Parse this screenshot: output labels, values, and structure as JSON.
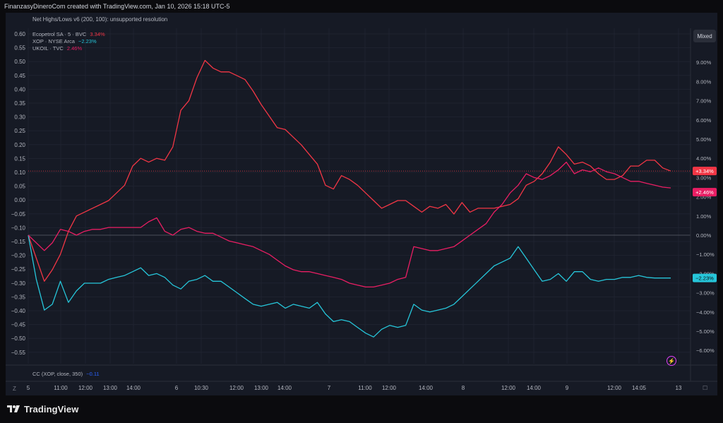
{
  "header": {
    "attribution": "FinanzasyDineroCom created with TradingView.com, Jan 10, 2026 15:18 UTC-5"
  },
  "indicator": {
    "label": "Net Highs/Lows v6 (200, 100): unsupported resolution"
  },
  "legend": [
    {
      "name": "Ecopetrol SA · 5 · BVC",
      "value": "3.34%",
      "color": "#f23645"
    },
    {
      "name": "XOP · NYSE Arca",
      "value": "−2.23%",
      "color": "#26c6da"
    },
    {
      "name": "UKOIL · TVC",
      "value": "2.46%",
      "color": "#e91e63"
    }
  ],
  "scale_button": "Mixed",
  "bottom_pane": {
    "label": "CC (XOP, close, 350)",
    "value": "−0.11",
    "value_color": "#2962ff"
  },
  "brand": "TradingView",
  "icons": [
    "tradingview-logo-icon",
    "lightning-icon"
  ],
  "chart_data": {
    "type": "line",
    "left_axis": {
      "ticks": [
        "0.60",
        "0.55",
        "0.50",
        "0.45",
        "0.40",
        "0.35",
        "0.30",
        "0.25",
        "0.20",
        "0.15",
        "0.10",
        "0.05",
        "0.00",
        "−0.05",
        "−0.10",
        "−0.15",
        "−0.20",
        "−0.25",
        "−0.30",
        "−0.35",
        "−0.40",
        "−0.45",
        "−0.50",
        "−0.55"
      ],
      "range": [
        -0.55,
        0.6
      ]
    },
    "right_axis": {
      "ticks": [
        "9.00%",
        "8.00%",
        "7.00%",
        "6.00%",
        "5.00%",
        "4.00%",
        "3.00%",
        "2.00%",
        "1.00%",
        "0.00%",
        "−1.00%",
        "−2.00%",
        "−3.00%",
        "−4.00%",
        "−5.00%",
        "−6.00%"
      ],
      "range": [
        -6.5,
        10.0
      ],
      "unit": "%"
    },
    "x_ticks": [
      "5",
      "11:00",
      "12:00",
      "13:00",
      "14:00",
      "6",
      "10:30",
      "12:00",
      "13:00",
      "14:00",
      "7",
      "11:00",
      "12:00",
      "14:00",
      "8",
      "12:00",
      "14:00",
      "9",
      "12:00",
      "14:05",
      "13"
    ],
    "x_nav": {
      "left": "Z",
      "right": "☐"
    },
    "reference_lines": {
      "zero_pct": 0,
      "last_price_pct": 3.34
    },
    "series": [
      {
        "name": "Ecopetrol SA · 5 · BVC",
        "color": "#f23645",
        "last_label": "+3.34%",
        "values": [
          0,
          -1.2,
          -2.4,
          -1.8,
          -1,
          0.2,
          1,
          1.2,
          1.4,
          1.6,
          1.8,
          2.2,
          2.6,
          3.6,
          4,
          3.8,
          4,
          3.9,
          4.6,
          6.5,
          7,
          8.2,
          9.1,
          8.7,
          8.5,
          8.5,
          8.3,
          8.1,
          7.5,
          6.8,
          6.2,
          5.6,
          5.5,
          5.1,
          4.7,
          4.2,
          3.7,
          2.6,
          2.4,
          3.1,
          2.9,
          2.6,
          2.2,
          1.8,
          1.4,
          1.6,
          1.8,
          1.8,
          1.5,
          1.2,
          1.5,
          1.4,
          1.6,
          1.1,
          1.7,
          1.2,
          1.4,
          1.4,
          1.4,
          1.5,
          1.6,
          1.9,
          2.6,
          2.8,
          3.2,
          3.8,
          4.6,
          4.2,
          3.7,
          3.8,
          3.6,
          3.2,
          2.9,
          2.9,
          3.1,
          3.6,
          3.6,
          3.9,
          3.9,
          3.5,
          3.34
        ]
      },
      {
        "name": "XOP · NYSE Arca",
        "color": "#26c6da",
        "last_label": "−2.23%",
        "values": [
          0,
          -2.3,
          -3.9,
          -3.6,
          -2.4,
          -3.5,
          -2.9,
          -2.5,
          -2.5,
          -2.5,
          -2.3,
          -2.2,
          -2.1,
          -1.9,
          -1.7,
          -2.1,
          -2,
          -2.2,
          -2.6,
          -2.8,
          -2.4,
          -2.3,
          -2.1,
          -2.4,
          -2.4,
          -2.7,
          -3,
          -3.3,
          -3.6,
          -3.7,
          -3.6,
          -3.5,
          -3.8,
          -3.6,
          -3.7,
          -3.8,
          -3.5,
          -4.1,
          -4.5,
          -4.4,
          -4.5,
          -4.8,
          -5.1,
          -5.3,
          -4.9,
          -4.7,
          -4.8,
          -4.7,
          -3.6,
          -3.9,
          -4,
          -3.9,
          -3.8,
          -3.6,
          -3.2,
          -2.8,
          -2.4,
          -2,
          -1.6,
          -1.4,
          -1.2,
          -0.6,
          -1.2,
          -1.8,
          -2.4,
          -2.3,
          -2,
          -2.4,
          -1.9,
          -1.9,
          -2.3,
          -2.4,
          -2.3,
          -2.3,
          -2.2,
          -2.2,
          -2.1,
          -2.2,
          -2.23,
          -2.23,
          -2.23
        ]
      },
      {
        "name": "UKOIL · TVC",
        "color": "#e91e63",
        "last_label": "+2.46%",
        "values": [
          0,
          -0.4,
          -0.8,
          -0.4,
          0.3,
          0.2,
          0,
          0.2,
          0.3,
          0.3,
          0.4,
          0.4,
          0.4,
          0.4,
          0.4,
          0.7,
          0.9,
          0.2,
          0,
          0.3,
          0.4,
          0.2,
          0.1,
          0.1,
          -0.1,
          -0.3,
          -0.4,
          -0.5,
          -0.6,
          -0.8,
          -1,
          -1.3,
          -1.6,
          -1.8,
          -1.9,
          -1.9,
          -2,
          -2.1,
          -2.2,
          -2.3,
          -2.5,
          -2.6,
          -2.7,
          -2.7,
          -2.6,
          -2.5,
          -2.3,
          -2.2,
          -0.6,
          -0.7,
          -0.8,
          -0.8,
          -0.7,
          -0.6,
          -0.3,
          0,
          0.3,
          0.6,
          1.2,
          1.6,
          2.2,
          2.6,
          3.2,
          3,
          2.9,
          3.1,
          3.4,
          3.8,
          3.2,
          3.4,
          3.3,
          3.5,
          3.3,
          3.2,
          3,
          2.8,
          2.8,
          2.7,
          2.6,
          2.5,
          2.46
        ]
      }
    ],
    "bottom_axis_ticks": [
      "11:00",
      "12:00",
      "13:00",
      "14:00",
      "6",
      "10:30",
      "12:00",
      "13:00",
      "14:00",
      "7",
      "11:00",
      "12:00",
      "14:00",
      "8",
      "12:00",
      "14:00",
      "9",
      "12:00",
      "14:05",
      "13"
    ]
  }
}
